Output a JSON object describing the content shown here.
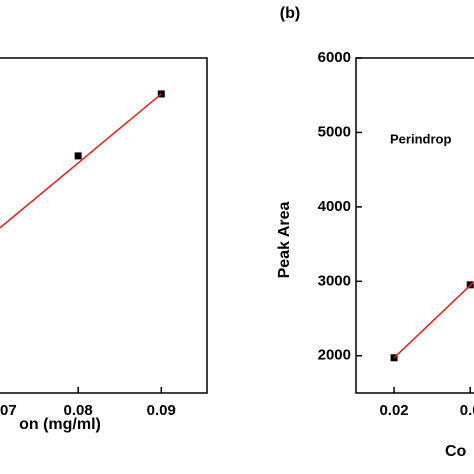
{
  "chart_data": [
    {
      "type": "scatter",
      "x_label": "on (mg/ml)",
      "xlim": [
        0.0706,
        0.0955
      ],
      "ylim": [
        1500,
        6000
      ],
      "xticks": [
        {
          "value": 0.07,
          "label": "07"
        },
        0.08,
        0.09
      ],
      "series": [
        {
          "color": "#000000",
          "x": [
            0.08,
            0.09
          ],
          "values": [
            4685,
            5517
          ]
        },
        {
          "color": "#e0201b",
          "line": true,
          "x": [
            0.0706,
            0.09
          ],
          "values": [
            3718,
            5517
          ]
        }
      ]
    },
    {
      "type": "scatter",
      "title": "(b)",
      "x_label": "Co",
      "y_label": "Peak Area",
      "annotation": "Perindrop",
      "xlim": [
        0.015,
        0.0305
      ],
      "ylim": [
        1500,
        6000
      ],
      "xticks": [
        0.02,
        {
          "value": 0.03,
          "label": "0.0"
        }
      ],
      "yticks": [
        2000,
        3000,
        4000,
        5000,
        6000
      ],
      "series": [
        {
          "color": "#000000",
          "x": [
            0.02,
            0.03
          ],
          "values": [
            1973,
            2953
          ]
        },
        {
          "color": "#e0201b",
          "line": true,
          "x": [
            0.02,
            0.0305
          ],
          "values": [
            1973,
            2993
          ]
        }
      ]
    }
  ]
}
